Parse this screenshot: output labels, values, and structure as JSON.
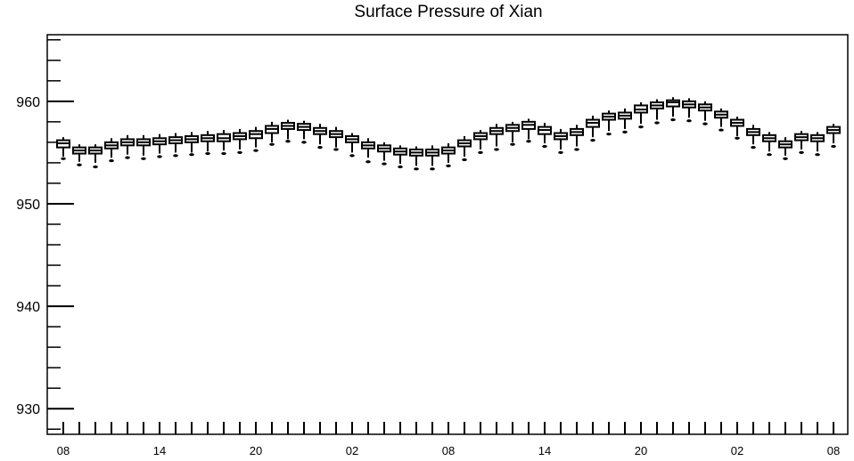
{
  "chart_data": {
    "type": "box",
    "title": "Surface Pressure of Xian",
    "xlabel": "",
    "ylabel": "",
    "ylim": [
      927.5,
      966.5
    ],
    "yticks": [
      930,
      940,
      950,
      960
    ],
    "xtick_labels": [
      "08",
      "14",
      "20",
      "02",
      "08",
      "14",
      "20",
      "02",
      "08"
    ],
    "grid": false,
    "legend": "none",
    "stroke_color": "#000000",
    "background": "#ffffff",
    "boxes": [
      {
        "t": 0,
        "min": 954.6,
        "q1": 955.5,
        "median": 955.9,
        "q3": 956.2,
        "max": 956.5,
        "outlier": 954.4
      },
      {
        "t": 1,
        "min": 954.1,
        "q1": 954.9,
        "median": 955.2,
        "q3": 955.5,
        "max": 955.8,
        "outlier": 953.8
      },
      {
        "t": 2,
        "min": 954.0,
        "q1": 954.9,
        "median": 955.2,
        "q3": 955.5,
        "max": 955.8,
        "outlier": 953.6
      },
      {
        "t": 3,
        "min": 954.5,
        "q1": 955.4,
        "median": 955.7,
        "q3": 956.0,
        "max": 956.4,
        "outlier": 954.2
      },
      {
        "t": 4,
        "min": 954.8,
        "q1": 955.7,
        "median": 956.0,
        "q3": 956.3,
        "max": 956.7,
        "outlier": 954.5
      },
      {
        "t": 5,
        "min": 954.7,
        "q1": 955.7,
        "median": 956.0,
        "q3": 956.3,
        "max": 956.7,
        "outlier": 954.4
      },
      {
        "t": 6,
        "min": 954.9,
        "q1": 955.8,
        "median": 956.1,
        "q3": 956.4,
        "max": 956.8,
        "outlier": 954.6
      },
      {
        "t": 7,
        "min": 955.0,
        "q1": 955.9,
        "median": 956.2,
        "q3": 956.5,
        "max": 956.9,
        "outlier": 954.7
      },
      {
        "t": 8,
        "min": 955.0,
        "q1": 956.0,
        "median": 956.3,
        "q3": 956.6,
        "max": 957.0,
        "outlier": 954.8
      },
      {
        "t": 9,
        "min": 955.1,
        "q1": 956.1,
        "median": 956.4,
        "q3": 956.7,
        "max": 957.1,
        "outlier": 954.9
      },
      {
        "t": 10,
        "min": 955.2,
        "q1": 956.1,
        "median": 956.4,
        "q3": 956.8,
        "max": 957.2,
        "outlier": 954.9
      },
      {
        "t": 11,
        "min": 955.3,
        "q1": 956.3,
        "median": 956.6,
        "q3": 956.9,
        "max": 957.3,
        "outlier": 955.0
      },
      {
        "t": 12,
        "min": 955.5,
        "q1": 956.4,
        "median": 956.8,
        "q3": 957.1,
        "max": 957.5,
        "outlier": 955.2
      },
      {
        "t": 13,
        "min": 956.0,
        "q1": 956.9,
        "median": 957.3,
        "q3": 957.6,
        "max": 958.0,
        "outlier": 955.8
      },
      {
        "t": 14,
        "min": 956.3,
        "q1": 957.3,
        "median": 957.6,
        "q3": 957.9,
        "max": 958.2,
        "outlier": 956.1
      },
      {
        "t": 15,
        "min": 956.3,
        "q1": 957.2,
        "median": 957.5,
        "q3": 957.8,
        "max": 958.1,
        "outlier": 956.0
      },
      {
        "t": 16,
        "min": 955.8,
        "q1": 956.8,
        "median": 957.1,
        "q3": 957.4,
        "max": 957.8,
        "outlier": 955.5
      },
      {
        "t": 17,
        "min": 955.5,
        "q1": 956.5,
        "median": 956.8,
        "q3": 957.1,
        "max": 957.5,
        "outlier": 955.3
      },
      {
        "t": 18,
        "min": 955.0,
        "q1": 956.0,
        "median": 956.3,
        "q3": 956.6,
        "max": 956.9,
        "outlier": 954.7
      },
      {
        "t": 19,
        "min": 954.5,
        "q1": 955.4,
        "median": 955.7,
        "q3": 956.0,
        "max": 956.4,
        "outlier": 954.1
      },
      {
        "t": 20,
        "min": 954.2,
        "q1": 955.1,
        "median": 955.4,
        "q3": 955.7,
        "max": 956.0,
        "outlier": 953.9
      },
      {
        "t": 21,
        "min": 953.9,
        "q1": 954.8,
        "median": 955.1,
        "q3": 955.4,
        "max": 955.7,
        "outlier": 953.6
      },
      {
        "t": 22,
        "min": 953.7,
        "q1": 954.7,
        "median": 955.0,
        "q3": 955.3,
        "max": 955.6,
        "outlier": 953.4
      },
      {
        "t": 23,
        "min": 953.7,
        "q1": 954.7,
        "median": 955.0,
        "q3": 955.3,
        "max": 955.7,
        "outlier": 953.4
      },
      {
        "t": 24,
        "min": 954.0,
        "q1": 954.9,
        "median": 955.2,
        "q3": 955.5,
        "max": 955.9,
        "outlier": 953.7
      },
      {
        "t": 25,
        "min": 954.6,
        "q1": 955.6,
        "median": 955.9,
        "q3": 956.2,
        "max": 956.6,
        "outlier": 954.3
      },
      {
        "t": 26,
        "min": 955.3,
        "q1": 956.3,
        "median": 956.6,
        "q3": 956.9,
        "max": 957.2,
        "outlier": 955.0
      },
      {
        "t": 27,
        "min": 955.6,
        "q1": 956.8,
        "median": 957.1,
        "q3": 957.4,
        "max": 957.8,
        "outlier": 955.3
      },
      {
        "t": 28,
        "min": 956.0,
        "q1": 957.1,
        "median": 957.4,
        "q3": 957.7,
        "max": 958.0,
        "outlier": 955.8
      },
      {
        "t": 29,
        "min": 956.3,
        "q1": 957.3,
        "median": 957.7,
        "q3": 958.0,
        "max": 958.3,
        "outlier": 956.1
      },
      {
        "t": 30,
        "min": 955.9,
        "q1": 956.8,
        "median": 957.2,
        "q3": 957.5,
        "max": 957.9,
        "outlier": 955.6
      },
      {
        "t": 31,
        "min": 955.3,
        "q1": 956.3,
        "median": 956.6,
        "q3": 956.9,
        "max": 957.3,
        "outlier": 955.0
      },
      {
        "t": 32,
        "min": 955.6,
        "q1": 956.7,
        "median": 957.0,
        "q3": 957.3,
        "max": 957.7,
        "outlier": 955.3
      },
      {
        "t": 33,
        "min": 956.5,
        "q1": 957.5,
        "median": 957.9,
        "q3": 958.2,
        "max": 958.6,
        "outlier": 956.2
      },
      {
        "t": 34,
        "min": 957.1,
        "q1": 958.2,
        "median": 958.5,
        "q3": 958.8,
        "max": 959.1,
        "outlier": 956.8
      },
      {
        "t": 35,
        "min": 957.3,
        "q1": 958.3,
        "median": 958.6,
        "q3": 958.9,
        "max": 959.3,
        "outlier": 957.0
      },
      {
        "t": 36,
        "min": 957.8,
        "q1": 958.9,
        "median": 959.2,
        "q3": 959.6,
        "max": 959.9,
        "outlier": 957.5
      },
      {
        "t": 37,
        "min": 958.2,
        "q1": 959.3,
        "median": 959.6,
        "q3": 959.9,
        "max": 960.2,
        "outlier": 957.9
      },
      {
        "t": 38,
        "min": 958.5,
        "q1": 959.5,
        "median": 959.9,
        "q3": 960.1,
        "max": 960.4,
        "outlier": 958.2
      },
      {
        "t": 39,
        "min": 958.4,
        "q1": 959.4,
        "median": 959.7,
        "q3": 960.0,
        "max": 960.3,
        "outlier": 958.1
      },
      {
        "t": 40,
        "min": 958.1,
        "q1": 959.1,
        "median": 959.4,
        "q3": 959.7,
        "max": 960.0,
        "outlier": 957.8
      },
      {
        "t": 41,
        "min": 957.5,
        "q1": 958.4,
        "median": 958.7,
        "q3": 959.0,
        "max": 959.3,
        "outlier": 957.2
      },
      {
        "t": 42,
        "min": 956.6,
        "q1": 957.6,
        "median": 957.9,
        "q3": 958.2,
        "max": 958.5,
        "outlier": 956.4
      },
      {
        "t": 43,
        "min": 955.8,
        "q1": 956.7,
        "median": 957.0,
        "q3": 957.3,
        "max": 957.7,
        "outlier": 955.5
      },
      {
        "t": 44,
        "min": 955.1,
        "q1": 956.1,
        "median": 956.4,
        "q3": 956.7,
        "max": 957.0,
        "outlier": 954.8
      },
      {
        "t": 45,
        "min": 954.7,
        "q1": 955.5,
        "median": 955.8,
        "q3": 956.1,
        "max": 956.5,
        "outlier": 954.4
      },
      {
        "t": 46,
        "min": 955.3,
        "q1": 956.2,
        "median": 956.5,
        "q3": 956.8,
        "max": 957.1,
        "outlier": 955.0
      },
      {
        "t": 47,
        "min": 955.1,
        "q1": 956.1,
        "median": 956.4,
        "q3": 956.7,
        "max": 957.0,
        "outlier": 954.8
      },
      {
        "t": 48,
        "min": 955.9,
        "q1": 956.9,
        "median": 957.2,
        "q3": 957.5,
        "max": 957.8,
        "outlier": 955.6
      }
    ]
  }
}
